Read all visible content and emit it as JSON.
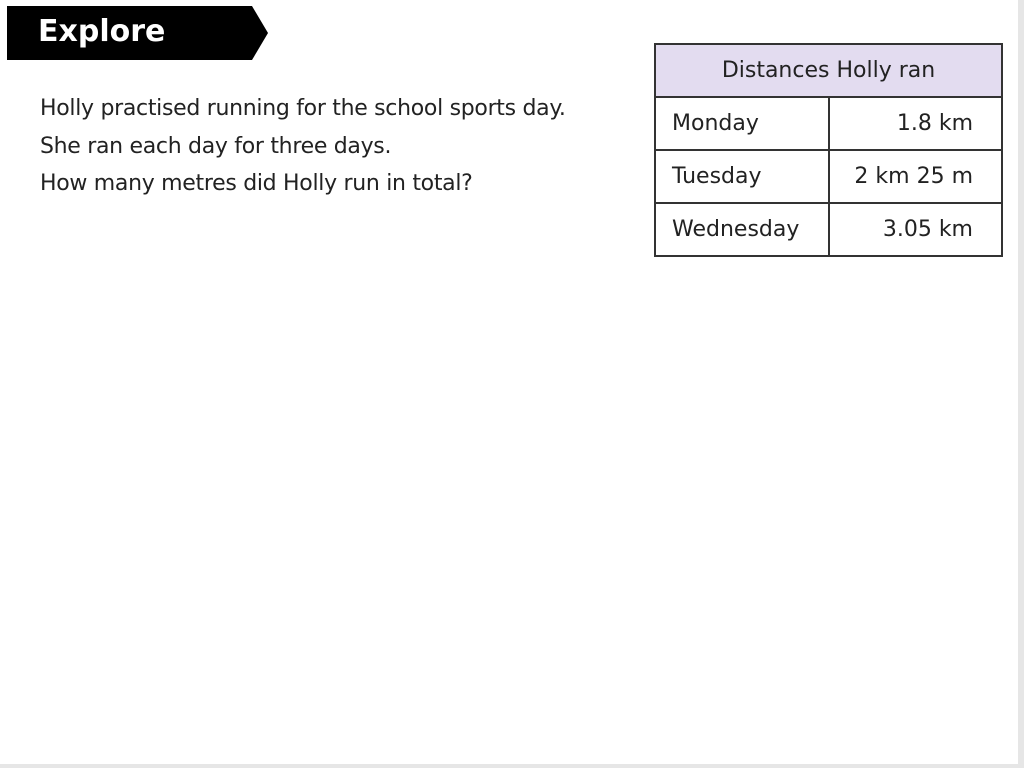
{
  "banner": {
    "title": "Explore"
  },
  "question": {
    "lines": [
      "Holly practised running for the school sports day.",
      "She ran each day for three days.",
      "How many metres did Holly run in total?"
    ]
  },
  "table": {
    "title": "Distances Holly ran",
    "header_color": "#e3dcf0",
    "rows": [
      {
        "day": "Monday",
        "distance": "1.8 km"
      },
      {
        "day": "Tuesday",
        "distance": "2 km 25 m"
      },
      {
        "day": "Wednesday",
        "distance": "3.05 km"
      }
    ]
  }
}
